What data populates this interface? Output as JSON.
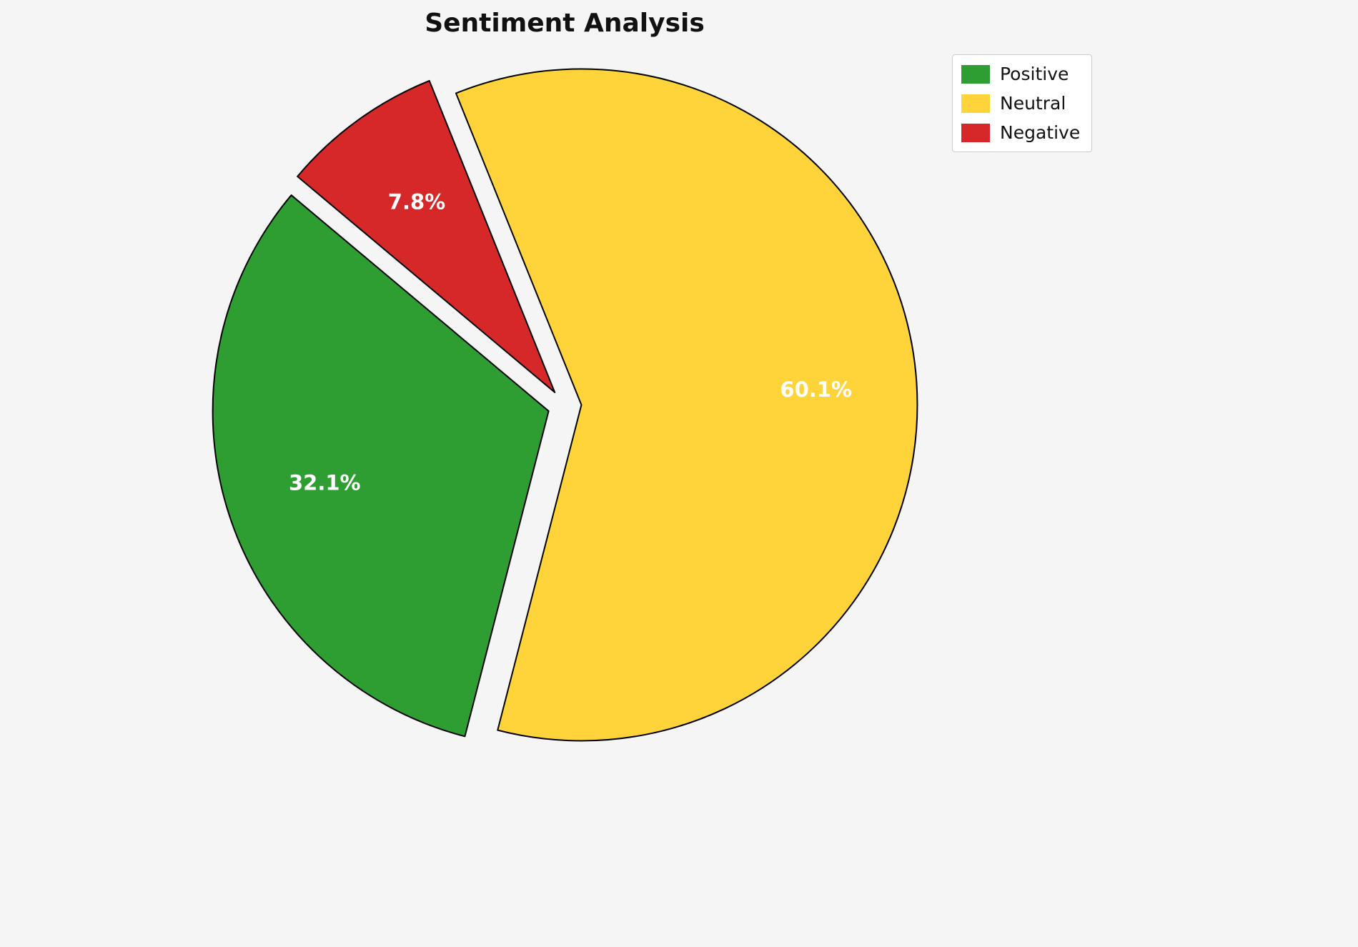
{
  "title": "Sentiment Analysis",
  "chart_data": {
    "type": "pie",
    "labels": [
      "Positive",
      "Neutral",
      "Negative"
    ],
    "values": [
      32.1,
      60.1,
      7.8
    ],
    "pct_labels": [
      "32.1%",
      "60.1%",
      "7.8%"
    ],
    "colors": [
      "#2e9e32",
      "#ffd43b",
      "#d62828"
    ],
    "edge_color": "#000000",
    "background": "#f5f5f5",
    "start_angle": 140,
    "direction": "counterclockwise",
    "explode": 0.05,
    "pct_distance": 0.7,
    "legend_position": "upper right"
  },
  "legend": {
    "items": [
      {
        "label": "Positive",
        "color": "#2e9e32"
      },
      {
        "label": "Neutral",
        "color": "#ffd43b"
      },
      {
        "label": "Negative",
        "color": "#d62828"
      }
    ]
  }
}
